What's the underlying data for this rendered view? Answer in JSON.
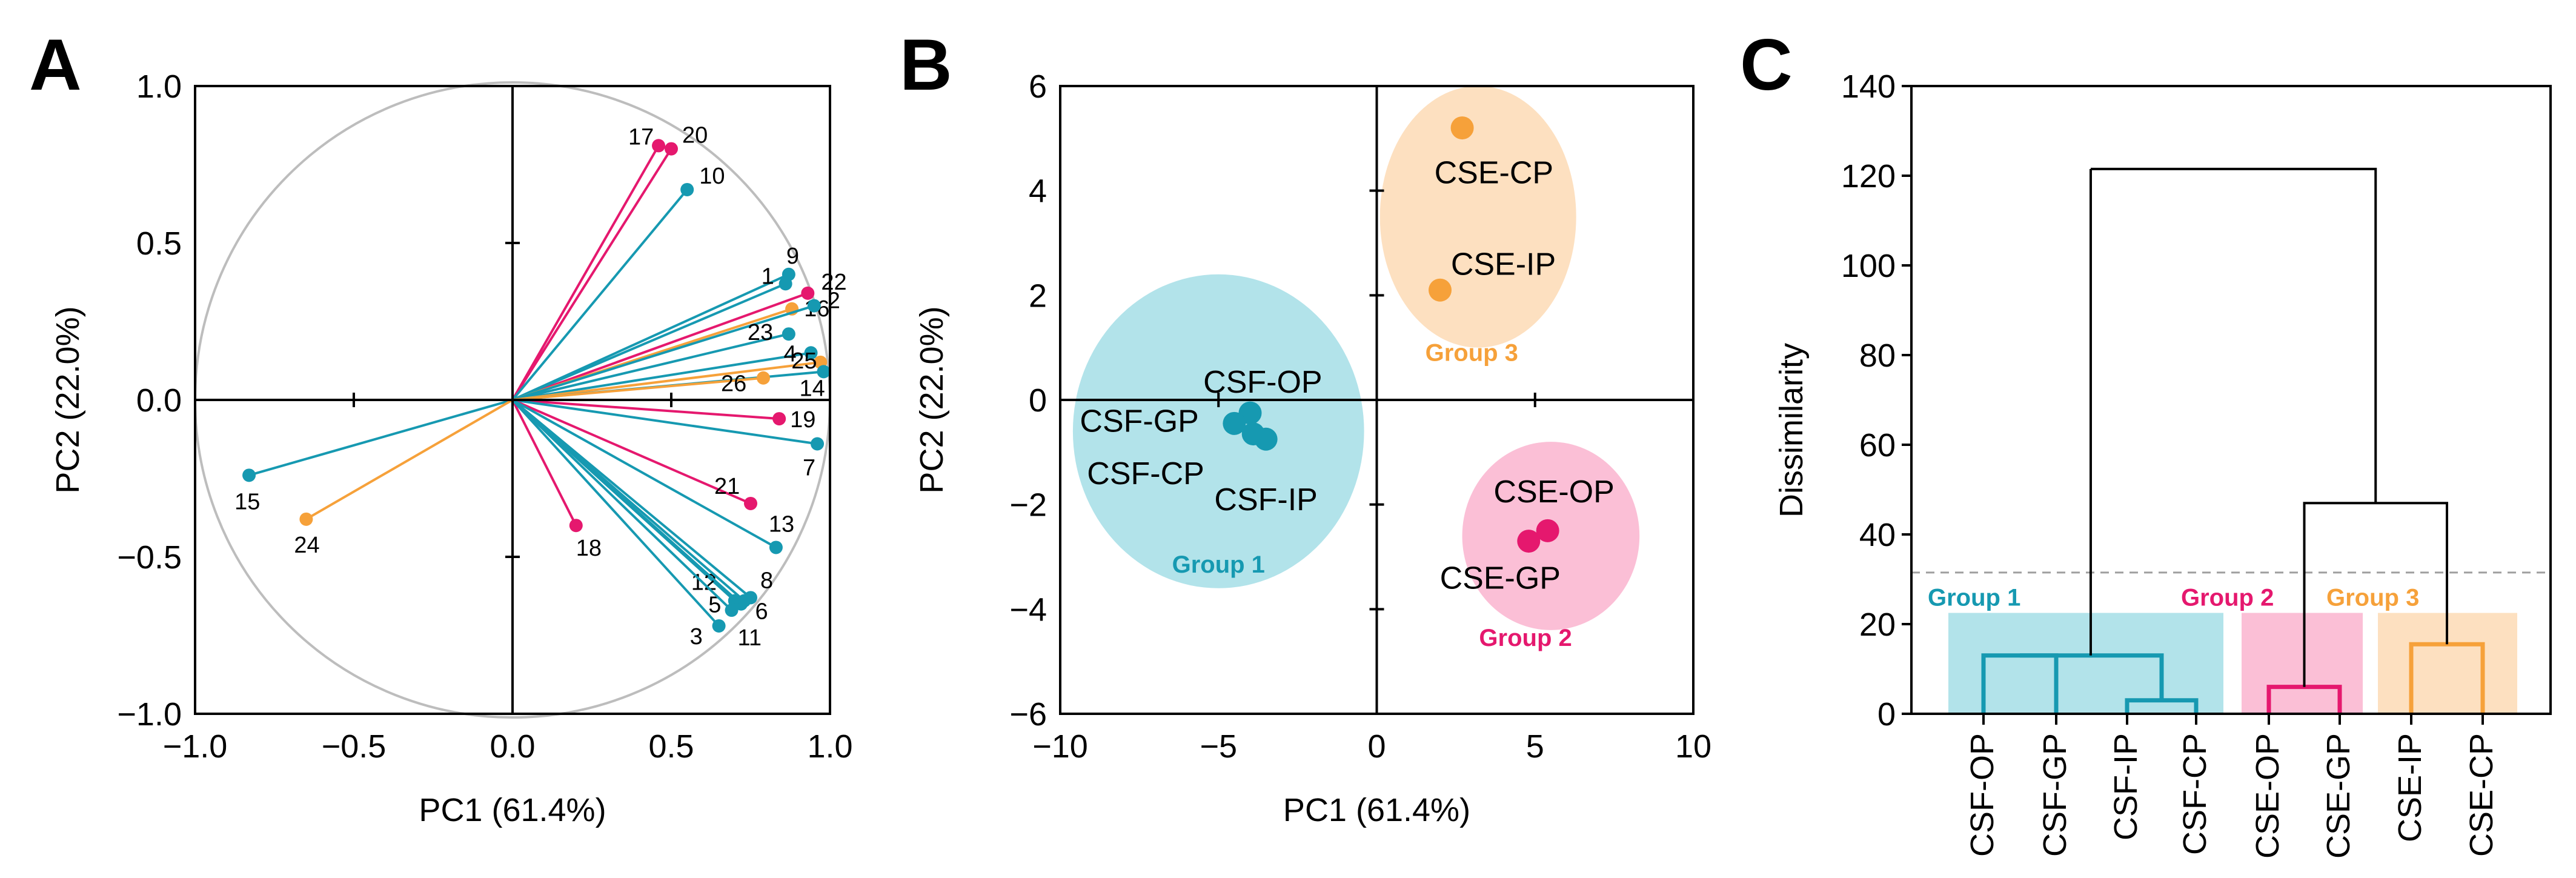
{
  "colors": {
    "teal": "#1699b1",
    "pink": "#e5186e",
    "orange": "#f6a13a",
    "teal_fill": "#b2e3ea",
    "pink_fill": "#fbbfd6",
    "orange_fill": "#fde0c0"
  },
  "chart_data": [
    {
      "panel": "A",
      "type": "scatter",
      "subtype": "pca-loadings",
      "xlabel": "PC1 (61.4%)",
      "ylabel": "PC2 (22.0%)",
      "xlim": [
        -1.0,
        1.0
      ],
      "ylim": [
        -1.0,
        1.0
      ],
      "xticks": [
        -1.0,
        -0.5,
        0.0,
        0.5,
        1.0
      ],
      "xtick_labels": [
        "−1.0",
        "−0.5",
        "0.0",
        "0.5",
        "1.0"
      ],
      "yticks": [
        -1.0,
        -0.5,
        0.0,
        0.5,
        1.0
      ],
      "ytick_labels": [
        "−1.0",
        "−0.5",
        "0.0",
        "0.5",
        "1.0"
      ],
      "unit_circle": true,
      "vectors": [
        {
          "id": "17",
          "x": 0.46,
          "y": 0.81,
          "color": "pink"
        },
        {
          "id": "20",
          "x": 0.5,
          "y": 0.8,
          "color": "pink"
        },
        {
          "id": "10",
          "x": 0.55,
          "y": 0.67,
          "color": "teal"
        },
        {
          "id": "9",
          "x": 0.87,
          "y": 0.4,
          "color": "teal"
        },
        {
          "id": "22",
          "x": 0.93,
          "y": 0.34,
          "color": "pink"
        },
        {
          "id": "1",
          "x": 0.86,
          "y": 0.37,
          "color": "teal"
        },
        {
          "id": "16",
          "x": 0.88,
          "y": 0.29,
          "color": "orange"
        },
        {
          "id": "2",
          "x": 0.95,
          "y": 0.3,
          "color": "teal"
        },
        {
          "id": "23",
          "x": 0.87,
          "y": 0.21,
          "color": "teal"
        },
        {
          "id": "4",
          "x": 0.94,
          "y": 0.15,
          "color": "teal"
        },
        {
          "id": "25",
          "x": 0.97,
          "y": 0.12,
          "color": "orange"
        },
        {
          "id": "14",
          "x": 0.98,
          "y": 0.09,
          "color": "teal"
        },
        {
          "id": "26",
          "x": 0.79,
          "y": 0.07,
          "color": "orange"
        },
        {
          "id": "19",
          "x": 0.84,
          "y": -0.06,
          "color": "pink"
        },
        {
          "id": "7",
          "x": 0.96,
          "y": -0.14,
          "color": "teal"
        },
        {
          "id": "21",
          "x": 0.75,
          "y": -0.33,
          "color": "pink"
        },
        {
          "id": "13",
          "x": 0.83,
          "y": -0.47,
          "color": "teal"
        },
        {
          "id": "18",
          "x": 0.2,
          "y": -0.4,
          "color": "pink"
        },
        {
          "id": "12",
          "x": 0.7,
          "y": -0.64,
          "color": "teal"
        },
        {
          "id": "8",
          "x": 0.75,
          "y": -0.63,
          "color": "teal"
        },
        {
          "id": "5",
          "x": 0.72,
          "y": -0.65,
          "color": "teal"
        },
        {
          "id": "6",
          "x": 0.73,
          "y": -0.64,
          "color": "teal"
        },
        {
          "id": "11",
          "x": 0.69,
          "y": -0.67,
          "color": "teal"
        },
        {
          "id": "3",
          "x": 0.65,
          "y": -0.72,
          "color": "teal"
        },
        {
          "id": "15",
          "x": -0.83,
          "y": -0.24,
          "color": "teal"
        },
        {
          "id": "24",
          "x": -0.65,
          "y": -0.38,
          "color": "orange"
        }
      ]
    },
    {
      "panel": "B",
      "type": "scatter",
      "subtype": "pca-scores",
      "xlabel": "PC1 (61.4%)",
      "ylabel": "PC2 (22.0%)",
      "xlim": [
        -10,
        10
      ],
      "ylim": [
        -6,
        6
      ],
      "xticks": [
        -10,
        -5,
        0,
        5,
        10
      ],
      "xtick_labels": [
        "−10",
        "−5",
        "0",
        "5",
        "10"
      ],
      "yticks": [
        -6,
        -4,
        -2,
        0,
        2,
        4,
        6
      ],
      "ytick_labels": [
        "−6",
        "−4",
        "−2",
        "0",
        "2",
        "4",
        "6"
      ],
      "points": [
        {
          "name": "CSF-OP",
          "x": -4.0,
          "y": -0.25,
          "group": 1
        },
        {
          "name": "CSF-GP",
          "x": -4.5,
          "y": -0.45,
          "group": 1
        },
        {
          "name": "CSF-CP",
          "x": -3.9,
          "y": -0.65,
          "group": 1
        },
        {
          "name": "CSF-IP",
          "x": -3.5,
          "y": -0.75,
          "group": 1
        },
        {
          "name": "CSE-CP",
          "x": 2.7,
          "y": 5.2,
          "group": 3
        },
        {
          "name": "CSE-IP",
          "x": 2.0,
          "y": 2.1,
          "group": 3
        },
        {
          "name": "CSE-OP",
          "x": 5.4,
          "y": -2.5,
          "group": 2
        },
        {
          "name": "CSE-GP",
          "x": 4.8,
          "y": -2.7,
          "group": 2
        }
      ],
      "point_labels": [
        "CSF-OP",
        "CSF-GP",
        "CSF-CP",
        "CSF-IP",
        "CSE-CP",
        "CSE-IP",
        "CSE-OP",
        "CSE-GP"
      ],
      "groups": [
        {
          "name": "Group 1",
          "color": "teal"
        },
        {
          "name": "Group 2",
          "color": "pink"
        },
        {
          "name": "Group 3",
          "color": "orange"
        }
      ]
    },
    {
      "panel": "C",
      "type": "dendrogram",
      "ylabel": "Dissimilarity",
      "ylim": [
        0,
        140
      ],
      "yticks": [
        0,
        20,
        40,
        60,
        80,
        100,
        120,
        140
      ],
      "ytick_labels": [
        "0",
        "20",
        "40",
        "60",
        "80",
        "100",
        "120",
        "140"
      ],
      "leaves": [
        "CSF-OP",
        "CSF-GP",
        "CSF-IP",
        "CSF-CP",
        "CSE-OP",
        "CSE-GP",
        "CSE-IP",
        "CSE-CP"
      ],
      "merges": [
        {
          "left": "CSF-IP",
          "right": "CSF-CP",
          "height": 3
        },
        {
          "left": "CSF-OP",
          "right": "CSF-GP",
          "height": 13
        },
        {
          "left": "CSE-OP",
          "right": "CSE-GP",
          "height": 6
        },
        {
          "left": "CSE-IP",
          "right": "CSE-CP",
          "height": 15.5
        },
        {
          "left": "Group 2",
          "right": "Group 3",
          "height": 47
        },
        {
          "left": "Group 1",
          "right": "Groups 2+3",
          "height": 121.5
        }
      ],
      "cutoff": 31.5,
      "groups": [
        {
          "name": "Group 1",
          "color": "teal",
          "leaves": [
            "CSF-OP",
            "CSF-GP",
            "CSF-IP",
            "CSF-CP"
          ]
        },
        {
          "name": "Group 2",
          "color": "pink",
          "leaves": [
            "CSE-OP",
            "CSE-GP"
          ]
        },
        {
          "name": "Group 3",
          "color": "orange",
          "leaves": [
            "CSE-IP",
            "CSE-CP"
          ]
        }
      ]
    }
  ],
  "panels": {
    "a_letter": "A",
    "b_letter": "B",
    "c_letter": "C"
  }
}
